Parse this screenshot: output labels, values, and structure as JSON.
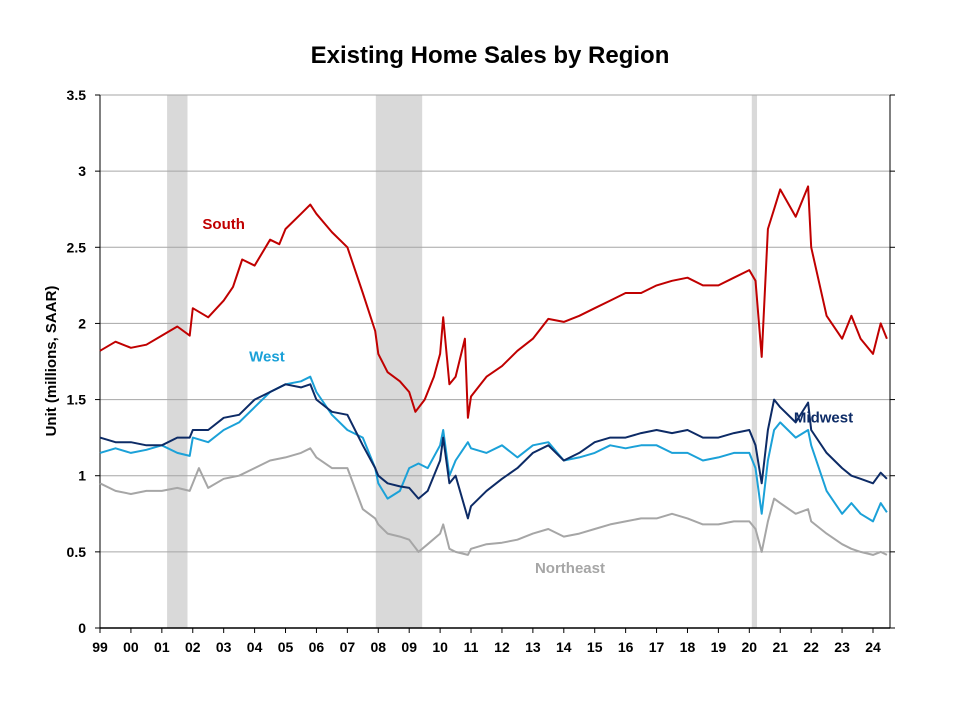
{
  "chart_data": {
    "type": "line",
    "title": "Existing Home Sales by Region",
    "xlabel": "",
    "ylabel": "Unit (millions, SAAR)",
    "x_tick_labels": [
      "99",
      "00",
      "01",
      "02",
      "03",
      "04",
      "05",
      "06",
      "07",
      "08",
      "09",
      "10",
      "11",
      "12",
      "13",
      "14",
      "15",
      "16",
      "17",
      "18",
      "19",
      "20",
      "21",
      "22",
      "23",
      "24"
    ],
    "y_tick_labels": [
      "0",
      "0.5",
      "1",
      "1.5",
      "2",
      "2.5",
      "3",
      "3.5"
    ],
    "xlim": [
      1999.0,
      2024.55
    ],
    "ylim": [
      0,
      3.5
    ],
    "grid": "horizontal",
    "recessions": [
      [
        2001.17,
        2001.83
      ],
      [
        2007.92,
        2009.42
      ],
      [
        2020.08,
        2020.25
      ]
    ],
    "colors": {
      "recession": "#d9d9d9",
      "grid": "#a6a6a6",
      "axis": "#000000"
    },
    "series": [
      {
        "name": "South",
        "color": "#c00000",
        "points": [
          [
            1999.0,
            1.82
          ],
          [
            1999.5,
            1.88
          ],
          [
            2000.0,
            1.84
          ],
          [
            2000.5,
            1.86
          ],
          [
            2001.0,
            1.92
          ],
          [
            2001.5,
            1.98
          ],
          [
            2001.9,
            1.92
          ],
          [
            2002.0,
            2.1
          ],
          [
            2002.5,
            2.04
          ],
          [
            2003.0,
            2.15
          ],
          [
            2003.3,
            2.24
          ],
          [
            2003.6,
            2.42
          ],
          [
            2004.0,
            2.38
          ],
          [
            2004.5,
            2.55
          ],
          [
            2004.8,
            2.52
          ],
          [
            2005.0,
            2.62
          ],
          [
            2005.5,
            2.72
          ],
          [
            2005.8,
            2.78
          ],
          [
            2006.0,
            2.72
          ],
          [
            2006.5,
            2.6
          ],
          [
            2007.0,
            2.5
          ],
          [
            2007.5,
            2.2
          ],
          [
            2007.9,
            1.95
          ],
          [
            2008.0,
            1.8
          ],
          [
            2008.3,
            1.68
          ],
          [
            2008.7,
            1.62
          ],
          [
            2009.0,
            1.55
          ],
          [
            2009.2,
            1.42
          ],
          [
            2009.5,
            1.5
          ],
          [
            2009.8,
            1.65
          ],
          [
            2010.0,
            1.8
          ],
          [
            2010.1,
            2.04
          ],
          [
            2010.3,
            1.6
          ],
          [
            2010.5,
            1.65
          ],
          [
            2010.8,
            1.9
          ],
          [
            2010.9,
            1.38
          ],
          [
            2011.0,
            1.52
          ],
          [
            2011.5,
            1.65
          ],
          [
            2012.0,
            1.72
          ],
          [
            2012.5,
            1.82
          ],
          [
            2013.0,
            1.9
          ],
          [
            2013.5,
            2.03
          ],
          [
            2014.0,
            2.01
          ],
          [
            2014.5,
            2.05
          ],
          [
            2015.0,
            2.1
          ],
          [
            2015.5,
            2.15
          ],
          [
            2016.0,
            2.2
          ],
          [
            2016.5,
            2.2
          ],
          [
            2017.0,
            2.25
          ],
          [
            2017.5,
            2.28
          ],
          [
            2018.0,
            2.3
          ],
          [
            2018.5,
            2.25
          ],
          [
            2019.0,
            2.25
          ],
          [
            2019.5,
            2.3
          ],
          [
            2020.0,
            2.35
          ],
          [
            2020.2,
            2.28
          ],
          [
            2020.4,
            1.78
          ],
          [
            2020.6,
            2.62
          ],
          [
            2020.8,
            2.75
          ],
          [
            2021.0,
            2.88
          ],
          [
            2021.5,
            2.7
          ],
          [
            2021.9,
            2.9
          ],
          [
            2022.0,
            2.5
          ],
          [
            2022.5,
            2.05
          ],
          [
            2023.0,
            1.9
          ],
          [
            2023.3,
            2.05
          ],
          [
            2023.6,
            1.9
          ],
          [
            2024.0,
            1.8
          ],
          [
            2024.25,
            2.0
          ],
          [
            2024.45,
            1.9
          ]
        ]
      },
      {
        "name": "West",
        "color": "#1ba1d8",
        "points": [
          [
            1999.0,
            1.15
          ],
          [
            1999.5,
            1.18
          ],
          [
            2000.0,
            1.15
          ],
          [
            2000.5,
            1.17
          ],
          [
            2001.0,
            1.2
          ],
          [
            2001.5,
            1.15
          ],
          [
            2001.9,
            1.13
          ],
          [
            2002.0,
            1.25
          ],
          [
            2002.5,
            1.22
          ],
          [
            2003.0,
            1.3
          ],
          [
            2003.5,
            1.35
          ],
          [
            2004.0,
            1.45
          ],
          [
            2004.5,
            1.55
          ],
          [
            2005.0,
            1.6
          ],
          [
            2005.5,
            1.62
          ],
          [
            2005.8,
            1.65
          ],
          [
            2006.0,
            1.55
          ],
          [
            2006.5,
            1.4
          ],
          [
            2007.0,
            1.3
          ],
          [
            2007.5,
            1.25
          ],
          [
            2007.9,
            1.05
          ],
          [
            2008.0,
            0.95
          ],
          [
            2008.3,
            0.85
          ],
          [
            2008.7,
            0.9
          ],
          [
            2009.0,
            1.05
          ],
          [
            2009.3,
            1.08
          ],
          [
            2009.6,
            1.05
          ],
          [
            2010.0,
            1.2
          ],
          [
            2010.1,
            1.3
          ],
          [
            2010.3,
            1.0
          ],
          [
            2010.5,
            1.1
          ],
          [
            2010.9,
            1.22
          ],
          [
            2011.0,
            1.18
          ],
          [
            2011.5,
            1.15
          ],
          [
            2012.0,
            1.2
          ],
          [
            2012.5,
            1.12
          ],
          [
            2013.0,
            1.2
          ],
          [
            2013.5,
            1.22
          ],
          [
            2014.0,
            1.1
          ],
          [
            2014.5,
            1.12
          ],
          [
            2015.0,
            1.15
          ],
          [
            2015.5,
            1.2
          ],
          [
            2016.0,
            1.18
          ],
          [
            2016.5,
            1.2
          ],
          [
            2017.0,
            1.2
          ],
          [
            2017.5,
            1.15
          ],
          [
            2018.0,
            1.15
          ],
          [
            2018.5,
            1.1
          ],
          [
            2019.0,
            1.12
          ],
          [
            2019.5,
            1.15
          ],
          [
            2020.0,
            1.15
          ],
          [
            2020.2,
            1.05
          ],
          [
            2020.4,
            0.75
          ],
          [
            2020.6,
            1.1
          ],
          [
            2020.8,
            1.3
          ],
          [
            2021.0,
            1.35
          ],
          [
            2021.5,
            1.25
          ],
          [
            2021.9,
            1.3
          ],
          [
            2022.0,
            1.2
          ],
          [
            2022.5,
            0.9
          ],
          [
            2023.0,
            0.75
          ],
          [
            2023.3,
            0.82
          ],
          [
            2023.6,
            0.75
          ],
          [
            2024.0,
            0.7
          ],
          [
            2024.25,
            0.82
          ],
          [
            2024.45,
            0.76
          ]
        ]
      },
      {
        "name": "Midwest",
        "color": "#0d2b66",
        "points": [
          [
            1999.0,
            1.25
          ],
          [
            1999.5,
            1.22
          ],
          [
            2000.0,
            1.22
          ],
          [
            2000.5,
            1.2
          ],
          [
            2001.0,
            1.2
          ],
          [
            2001.5,
            1.25
          ],
          [
            2001.9,
            1.25
          ],
          [
            2002.0,
            1.3
          ],
          [
            2002.5,
            1.3
          ],
          [
            2003.0,
            1.38
          ],
          [
            2003.5,
            1.4
          ],
          [
            2004.0,
            1.5
          ],
          [
            2004.5,
            1.55
          ],
          [
            2005.0,
            1.6
          ],
          [
            2005.5,
            1.58
          ],
          [
            2005.8,
            1.6
          ],
          [
            2006.0,
            1.5
          ],
          [
            2006.5,
            1.42
          ],
          [
            2007.0,
            1.4
          ],
          [
            2007.5,
            1.2
          ],
          [
            2007.9,
            1.05
          ],
          [
            2008.0,
            1.0
          ],
          [
            2008.3,
            0.95
          ],
          [
            2008.7,
            0.93
          ],
          [
            2009.0,
            0.92
          ],
          [
            2009.3,
            0.85
          ],
          [
            2009.6,
            0.9
          ],
          [
            2010.0,
            1.1
          ],
          [
            2010.1,
            1.25
          ],
          [
            2010.3,
            0.95
          ],
          [
            2010.5,
            1.0
          ],
          [
            2010.9,
            0.72
          ],
          [
            2011.0,
            0.8
          ],
          [
            2011.5,
            0.9
          ],
          [
            2012.0,
            0.98
          ],
          [
            2012.5,
            1.05
          ],
          [
            2013.0,
            1.15
          ],
          [
            2013.5,
            1.2
          ],
          [
            2014.0,
            1.1
          ],
          [
            2014.5,
            1.15
          ],
          [
            2015.0,
            1.22
          ],
          [
            2015.5,
            1.25
          ],
          [
            2016.0,
            1.25
          ],
          [
            2016.5,
            1.28
          ],
          [
            2017.0,
            1.3
          ],
          [
            2017.5,
            1.28
          ],
          [
            2018.0,
            1.3
          ],
          [
            2018.5,
            1.25
          ],
          [
            2019.0,
            1.25
          ],
          [
            2019.5,
            1.28
          ],
          [
            2020.0,
            1.3
          ],
          [
            2020.2,
            1.2
          ],
          [
            2020.4,
            0.95
          ],
          [
            2020.6,
            1.3
          ],
          [
            2020.8,
            1.5
          ],
          [
            2021.0,
            1.45
          ],
          [
            2021.5,
            1.35
          ],
          [
            2021.9,
            1.48
          ],
          [
            2022.0,
            1.3
          ],
          [
            2022.5,
            1.15
          ],
          [
            2023.0,
            1.05
          ],
          [
            2023.3,
            1.0
          ],
          [
            2023.6,
            0.98
          ],
          [
            2024.0,
            0.95
          ],
          [
            2024.25,
            1.02
          ],
          [
            2024.45,
            0.98
          ]
        ]
      },
      {
        "name": "Northeast",
        "color": "#a6a6a6",
        "points": [
          [
            1999.0,
            0.95
          ],
          [
            1999.5,
            0.9
          ],
          [
            2000.0,
            0.88
          ],
          [
            2000.5,
            0.9
          ],
          [
            2001.0,
            0.9
          ],
          [
            2001.5,
            0.92
          ],
          [
            2001.9,
            0.9
          ],
          [
            2002.0,
            0.95
          ],
          [
            2002.2,
            1.05
          ],
          [
            2002.5,
            0.92
          ],
          [
            2003.0,
            0.98
          ],
          [
            2003.5,
            1.0
          ],
          [
            2004.0,
            1.05
          ],
          [
            2004.5,
            1.1
          ],
          [
            2005.0,
            1.12
          ],
          [
            2005.5,
            1.15
          ],
          [
            2005.8,
            1.18
          ],
          [
            2006.0,
            1.12
          ],
          [
            2006.5,
            1.05
          ],
          [
            2007.0,
            1.05
          ],
          [
            2007.5,
            0.78
          ],
          [
            2007.9,
            0.72
          ],
          [
            2008.0,
            0.68
          ],
          [
            2008.3,
            0.62
          ],
          [
            2008.7,
            0.6
          ],
          [
            2009.0,
            0.58
          ],
          [
            2009.3,
            0.5
          ],
          [
            2009.6,
            0.55
          ],
          [
            2010.0,
            0.62
          ],
          [
            2010.1,
            0.68
          ],
          [
            2010.3,
            0.52
          ],
          [
            2010.5,
            0.5
          ],
          [
            2010.9,
            0.48
          ],
          [
            2011.0,
            0.52
          ],
          [
            2011.5,
            0.55
          ],
          [
            2012.0,
            0.56
          ],
          [
            2012.5,
            0.58
          ],
          [
            2013.0,
            0.62
          ],
          [
            2013.5,
            0.65
          ],
          [
            2014.0,
            0.6
          ],
          [
            2014.5,
            0.62
          ],
          [
            2015.0,
            0.65
          ],
          [
            2015.5,
            0.68
          ],
          [
            2016.0,
            0.7
          ],
          [
            2016.5,
            0.72
          ],
          [
            2017.0,
            0.72
          ],
          [
            2017.5,
            0.75
          ],
          [
            2018.0,
            0.72
          ],
          [
            2018.5,
            0.68
          ],
          [
            2019.0,
            0.68
          ],
          [
            2019.5,
            0.7
          ],
          [
            2020.0,
            0.7
          ],
          [
            2020.2,
            0.65
          ],
          [
            2020.4,
            0.5
          ],
          [
            2020.6,
            0.7
          ],
          [
            2020.8,
            0.85
          ],
          [
            2021.0,
            0.82
          ],
          [
            2021.5,
            0.75
          ],
          [
            2021.9,
            0.78
          ],
          [
            2022.0,
            0.7
          ],
          [
            2022.5,
            0.62
          ],
          [
            2023.0,
            0.55
          ],
          [
            2023.3,
            0.52
          ],
          [
            2023.6,
            0.5
          ],
          [
            2024.0,
            0.48
          ],
          [
            2024.25,
            0.5
          ],
          [
            2024.45,
            0.48
          ]
        ]
      }
    ]
  }
}
